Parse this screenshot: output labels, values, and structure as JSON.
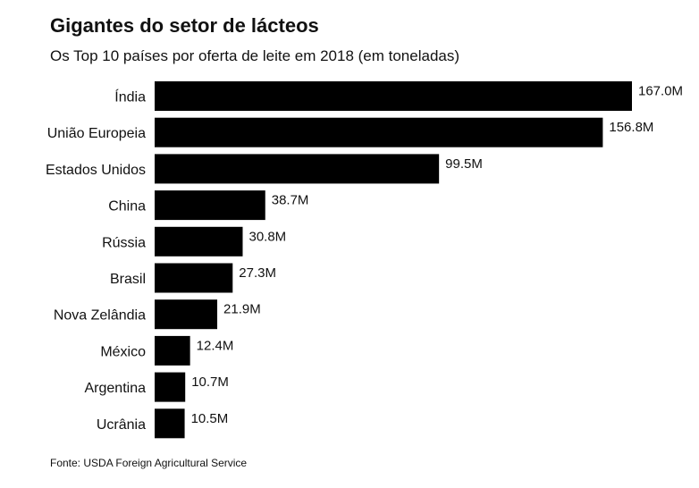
{
  "title": "Gigantes do setor de lácteos",
  "subtitle": "Os Top 10 países por oferta de leite em 2018 (em toneladas)",
  "source": "Fonte: USDA Foreign Agricultural Service",
  "chart_data": {
    "type": "bar",
    "orientation": "horizontal",
    "title": "Gigantes do setor de lácteos",
    "subtitle": "Os Top 10 países por oferta de leite em 2018 (em toneladas)",
    "xlabel": "",
    "ylabel": "",
    "xlim": [
      0,
      167
    ],
    "unit": "M",
    "bar_color": "#000000",
    "categories": [
      "Índia",
      "União Europeia",
      "Estados Unidos",
      "China",
      "Rússia",
      "Brasil",
      "Nova Zelândia",
      "México",
      "Argentina",
      "Ucrânia"
    ],
    "values": [
      167.0,
      156.8,
      99.5,
      38.7,
      30.8,
      27.3,
      21.9,
      12.4,
      10.7,
      10.5
    ],
    "value_labels": [
      "167.0M",
      "156.8M",
      "99.5M",
      "38.7M",
      "30.8M",
      "27.3M",
      "21.9M",
      "12.4M",
      "10.7M",
      "10.5M"
    ]
  }
}
